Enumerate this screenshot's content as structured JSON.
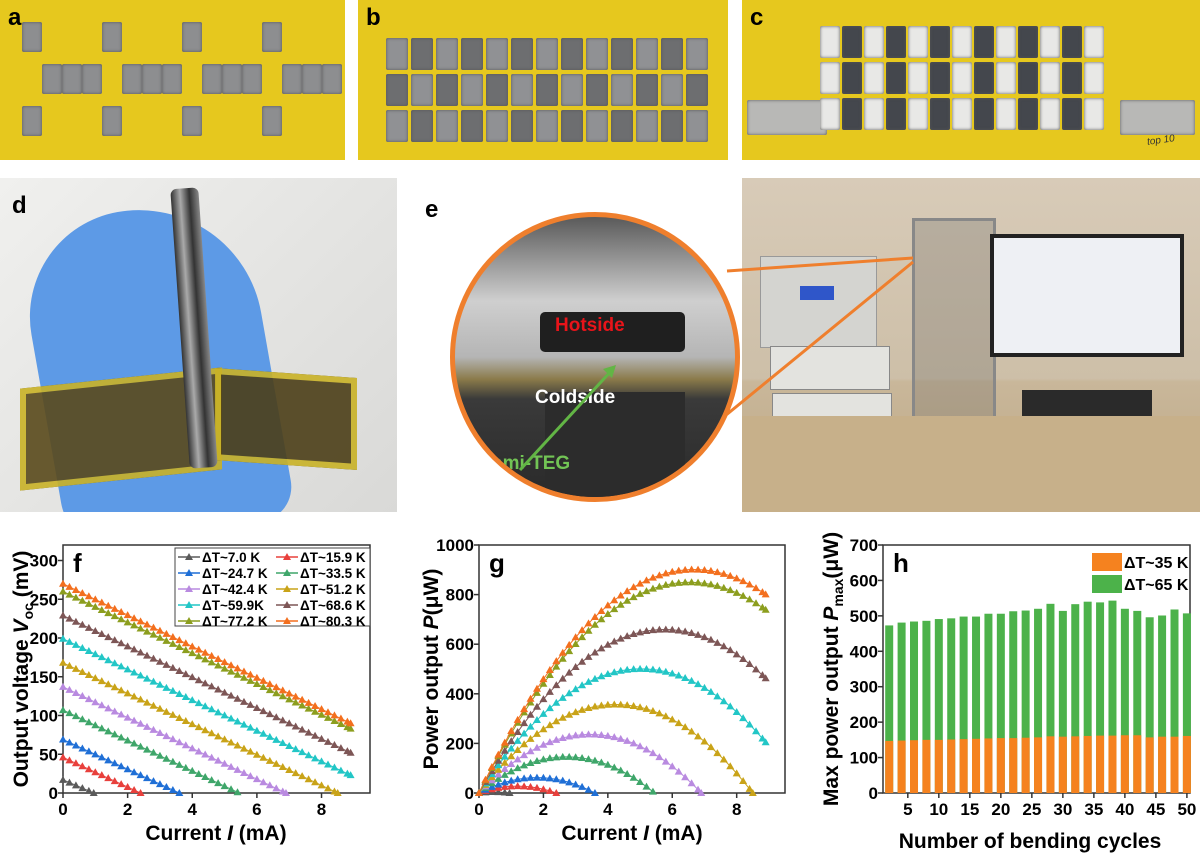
{
  "panel_labels": {
    "a": "a",
    "b": "b",
    "c": "c",
    "d": "d",
    "e": "e"
  },
  "photo_e": {
    "hotside": "Hotside",
    "coldside": "Coldside",
    "device": "Origami-TEG"
  },
  "photo_c": {
    "note": "top 10"
  },
  "colors": {
    "frame_orange": "#ef7f2d",
    "tape_yellow": "#e6c81e",
    "glove_blue": "#5d9ae6"
  },
  "chart_data": [
    {
      "id": "f",
      "panel_label": "f",
      "type": "line",
      "xlabel": {
        "main": "Current ",
        "var": "I",
        "unit": " (mA)"
      },
      "ylabel": {
        "main": "Output voltage ",
        "var": "V",
        "sub": "oc",
        "unit": " (mV)"
      },
      "xlim": [
        0,
        9.5
      ],
      "ylim": [
        0,
        320
      ],
      "xticks": [
        0,
        2,
        4,
        6,
        8
      ],
      "yticks": [
        0,
        50,
        100,
        150,
        200,
        250,
        300
      ],
      "legend_position": "top-right",
      "marker": "triangle",
      "step_mA": 0.2,
      "series": [
        {
          "name": "ΔT~7.0 K",
          "color": "#5a5a5a",
          "voc": 17,
          "i_end": 0.95,
          "v_end": 0
        },
        {
          "name": "ΔT~15.9 K",
          "color": "#e8403c",
          "voc": 46,
          "i_end": 2.4,
          "v_end": 0
        },
        {
          "name": "ΔT~24.7 K",
          "color": "#1f6fd6",
          "voc": 69,
          "i_end": 3.6,
          "v_end": 0
        },
        {
          "name": "ΔT~33.5 K",
          "color": "#3fa66a",
          "voc": 107,
          "i_end": 5.45,
          "v_end": 0
        },
        {
          "name": "ΔT~42.4 K",
          "color": "#b98ae0",
          "voc": 137,
          "i_end": 6.9,
          "v_end": 0
        },
        {
          "name": "ΔT~51.2 K",
          "color": "#c9a318",
          "voc": 168,
          "i_end": 8.5,
          "v_end": 0
        },
        {
          "name": "ΔT~59.9K",
          "color": "#22c6c6",
          "voc": 199,
          "i_end": 8.9,
          "v_end": 23
        },
        {
          "name": "ΔT~68.6 K",
          "color": "#7d5656",
          "voc": 229,
          "i_end": 8.9,
          "v_end": 52
        },
        {
          "name": "ΔT~77.2 K",
          "color": "#8c9e1e",
          "voc": 260,
          "i_end": 8.9,
          "v_end": 83
        },
        {
          "name": "ΔT~80.3 K",
          "color": "#f36f1e",
          "voc": 270,
          "i_end": 8.9,
          "v_end": 90
        }
      ]
    },
    {
      "id": "g",
      "panel_label": "g",
      "type": "line",
      "xlabel": {
        "main": "Current ",
        "var": "I",
        "unit": " (mA)"
      },
      "ylabel": {
        "main": "Power output ",
        "var": "P",
        "unit": "(μW)"
      },
      "xlim": [
        0,
        9.5
      ],
      "ylim": [
        0,
        1000
      ],
      "xticks": [
        0,
        2,
        4,
        6,
        8
      ],
      "yticks": [
        0,
        200,
        400,
        600,
        800,
        1000
      ],
      "note": "P = V × I for the same ten ΔT series as panel f",
      "peak_power_uW": [
        4,
        28,
        78,
        148,
        245,
        360,
        505,
        660,
        850,
        905
      ]
    },
    {
      "id": "h",
      "panel_label": "h",
      "type": "bar",
      "xlabel": "Number of bending cycles",
      "ylabel": {
        "main": "Max power output ",
        "var": "P",
        "sub": "max",
        "unit": "(μW)"
      },
      "xlim": [
        1,
        50.5
      ],
      "ylim": [
        0,
        700
      ],
      "xticks": [
        5,
        10,
        15,
        20,
        25,
        30,
        35,
        40,
        45,
        50
      ],
      "yticks": [
        0,
        100,
        200,
        300,
        400,
        500,
        600,
        700
      ],
      "legend_position": "top-right",
      "categories": [
        2,
        4,
        6,
        8,
        10,
        12,
        14,
        16,
        18,
        20,
        22,
        24,
        26,
        28,
        30,
        32,
        34,
        36,
        38,
        40,
        42,
        44,
        46,
        48,
        50
      ],
      "series": [
        {
          "name": "ΔT~65 K",
          "color": "#4cb24a",
          "values": [
            473,
            481,
            484,
            486,
            491,
            493,
            498,
            498,
            506,
            506,
            513,
            515,
            520,
            534,
            514,
            533,
            540,
            538,
            543,
            520,
            514,
            496,
            501,
            518,
            507
          ]
        },
        {
          "name": "ΔT~35 K",
          "color": "#f5821f",
          "values": [
            147,
            148,
            149,
            150,
            150,
            151,
            152,
            153,
            154,
            155,
            155,
            156,
            157,
            160,
            159,
            160,
            161,
            162,
            162,
            163,
            163,
            157,
            159,
            159,
            161
          ]
        }
      ]
    }
  ]
}
